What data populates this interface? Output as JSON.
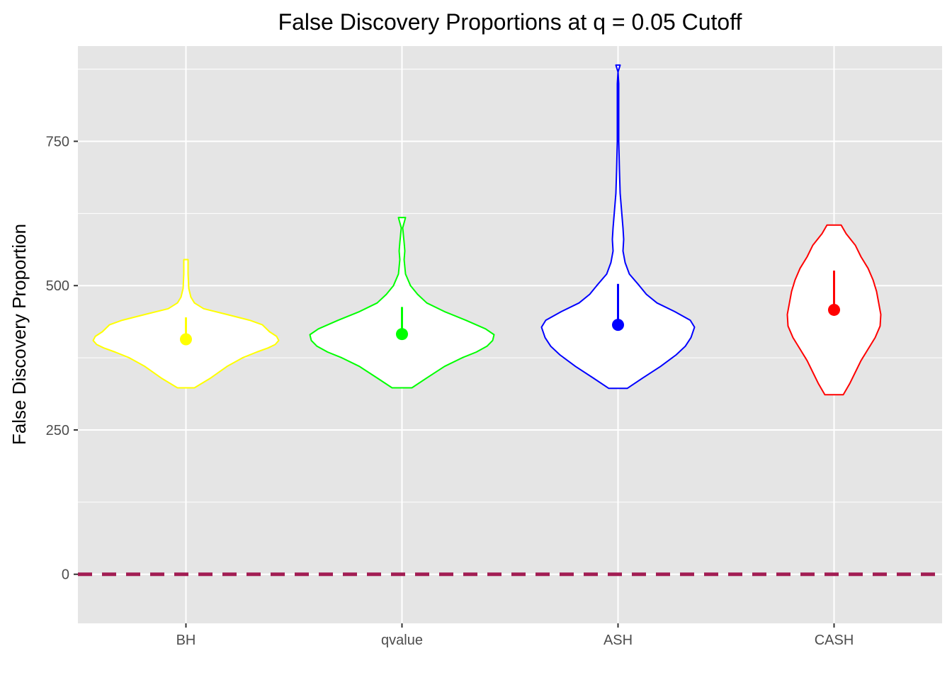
{
  "chart_data": {
    "type": "violin",
    "title": "False Discovery Proportions at q = 0.05 Cutoff",
    "xlabel": "",
    "ylabel": "False Discovery Proportion",
    "ylim": [
      -85,
      915
    ],
    "yticks": [
      0,
      250,
      500,
      750
    ],
    "grid": true,
    "legend": "none",
    "reference_line": {
      "y": 0,
      "style": "dashed",
      "color": "#a21d53"
    },
    "categories": [
      "BH",
      "qvalue",
      "ASH",
      "CASH"
    ],
    "series": [
      {
        "category": "BH",
        "color": "#ffff00",
        "mean": 407,
        "upper": 445,
        "profile": [
          [
            323,
            12
          ],
          [
            340,
            35
          ],
          [
            360,
            58
          ],
          [
            375,
            80
          ],
          [
            385,
            100
          ],
          [
            392,
            116
          ],
          [
            398,
            126
          ],
          [
            405,
            131
          ],
          [
            412,
            128
          ],
          [
            420,
            118
          ],
          [
            432,
            108
          ],
          [
            440,
            90
          ],
          [
            450,
            58
          ],
          [
            460,
            25
          ],
          [
            470,
            12
          ],
          [
            480,
            7
          ],
          [
            495,
            4
          ],
          [
            520,
            3
          ],
          [
            545,
            3
          ]
        ]
      },
      {
        "category": "qvalue",
        "color": "#00ff00",
        "mean": 416,
        "upper": 463,
        "profile": [
          [
            323,
            14
          ],
          [
            340,
            35
          ],
          [
            360,
            60
          ],
          [
            375,
            85
          ],
          [
            385,
            105
          ],
          [
            395,
            120
          ],
          [
            405,
            128
          ],
          [
            415,
            130
          ],
          [
            425,
            118
          ],
          [
            440,
            90
          ],
          [
            455,
            60
          ],
          [
            470,
            35
          ],
          [
            485,
            22
          ],
          [
            500,
            12
          ],
          [
            520,
            5
          ],
          [
            545,
            3
          ],
          [
            560,
            4
          ],
          [
            575,
            3
          ],
          [
            600,
            1
          ],
          [
            618,
            5
          ]
        ]
      },
      {
        "category": "ASH",
        "color": "#0000ff",
        "mean": 432,
        "upper": 503,
        "profile": [
          [
            322,
            13
          ],
          [
            340,
            35
          ],
          [
            360,
            60
          ],
          [
            380,
            82
          ],
          [
            395,
            95
          ],
          [
            410,
            103
          ],
          [
            428,
            108
          ],
          [
            440,
            102
          ],
          [
            455,
            80
          ],
          [
            470,
            55
          ],
          [
            485,
            40
          ],
          [
            500,
            30
          ],
          [
            520,
            16
          ],
          [
            540,
            10
          ],
          [
            560,
            7
          ],
          [
            580,
            8
          ],
          [
            600,
            7
          ],
          [
            630,
            5
          ],
          [
            660,
            3
          ],
          [
            700,
            2
          ],
          [
            750,
            1
          ],
          [
            800,
            1
          ],
          [
            850,
            1
          ],
          [
            870,
            0
          ],
          [
            882,
            3
          ]
        ]
      },
      {
        "category": "CASH",
        "color": "#ff0000",
        "mean": 458,
        "upper": 526,
        "profile": [
          [
            311,
            13
          ],
          [
            330,
            22
          ],
          [
            350,
            30
          ],
          [
            370,
            38
          ],
          [
            390,
            48
          ],
          [
            410,
            58
          ],
          [
            430,
            65
          ],
          [
            450,
            66
          ],
          [
            470,
            63
          ],
          [
            490,
            60
          ],
          [
            510,
            55
          ],
          [
            530,
            48
          ],
          [
            550,
            38
          ],
          [
            570,
            30
          ],
          [
            590,
            17
          ],
          [
            605,
            10
          ]
        ]
      }
    ]
  }
}
